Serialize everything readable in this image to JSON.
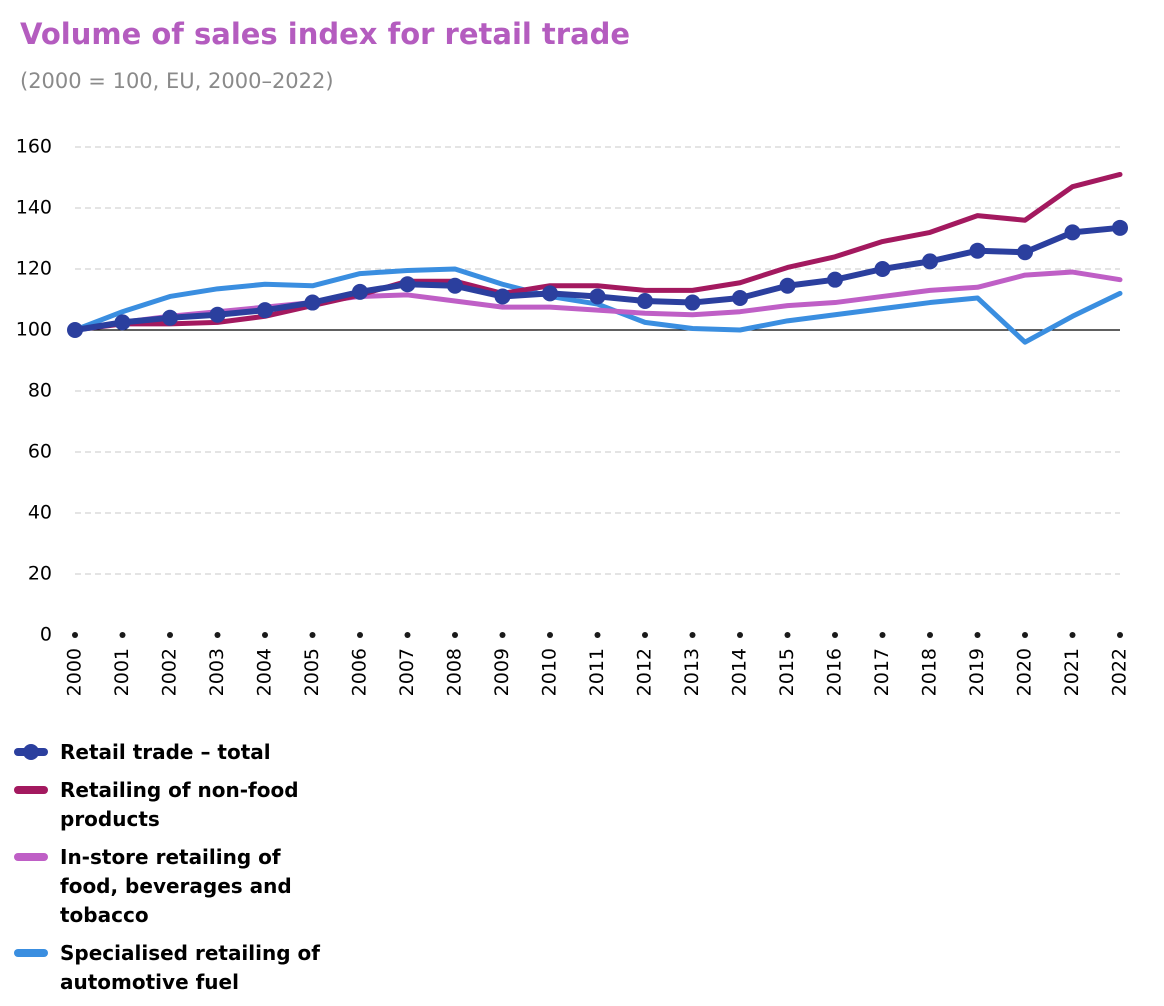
{
  "chart_data": {
    "type": "line",
    "title": "Volume of sales index for retail trade",
    "subtitle": "(2000 = 100, EU, 2000–2022)",
    "categories": [
      "2000",
      "2001",
      "2002",
      "2003",
      "2004",
      "2005",
      "2006",
      "2007",
      "2008",
      "2009",
      "2010",
      "2011",
      "2012",
      "2013",
      "2014",
      "2015",
      "2016",
      "2017",
      "2018",
      "2019",
      "2020",
      "2021",
      "2022"
    ],
    "ylim": [
      0,
      160
    ],
    "yticks": [
      0,
      20,
      40,
      60,
      80,
      100,
      120,
      140,
      160
    ],
    "grid": true,
    "reference_line": 100,
    "legend": "bottom-left",
    "series": [
      {
        "name": "Retail trade – total",
        "color": "#2b3f9e",
        "marker": true,
        "values": [
          100,
          102.5,
          104,
          105,
          106.5,
          109,
          112.5,
          115,
          114.5,
          111,
          112,
          111,
          109.5,
          109,
          110.5,
          114.5,
          116.5,
          120,
          122.5,
          126,
          125.5,
          132,
          133.5
        ]
      },
      {
        "name": "Retailing of non-food products",
        "color": "#a3195f",
        "marker": false,
        "values": [
          100,
          102,
          102,
          102.5,
          104.5,
          108,
          111.5,
          116,
          116,
          112,
          114.5,
          114.5,
          113,
          113,
          115.5,
          120.5,
          124,
          129,
          132,
          137.5,
          136,
          147,
          151
        ]
      },
      {
        "name": "In-store retailing of food, beverages and tobacco",
        "color": "#bf5fc6",
        "marker": false,
        "values": [
          100,
          102.5,
          104.5,
          106,
          107.5,
          109,
          111,
          111.5,
          109.5,
          107.5,
          107.5,
          106.5,
          105.5,
          105,
          106,
          108,
          109,
          111,
          113,
          114,
          118,
          119,
          116.5
        ]
      },
      {
        "name": "Specialised retailing of automotive fuel",
        "color": "#3a8ee0",
        "marker": false,
        "values": [
          100,
          106,
          111,
          113.5,
          115,
          114.5,
          118.5,
          119.5,
          120,
          115,
          111,
          108.5,
          102.5,
          100.5,
          100,
          103,
          105,
          107,
          109,
          110.5,
          96,
          104.5,
          112
        ]
      }
    ]
  }
}
